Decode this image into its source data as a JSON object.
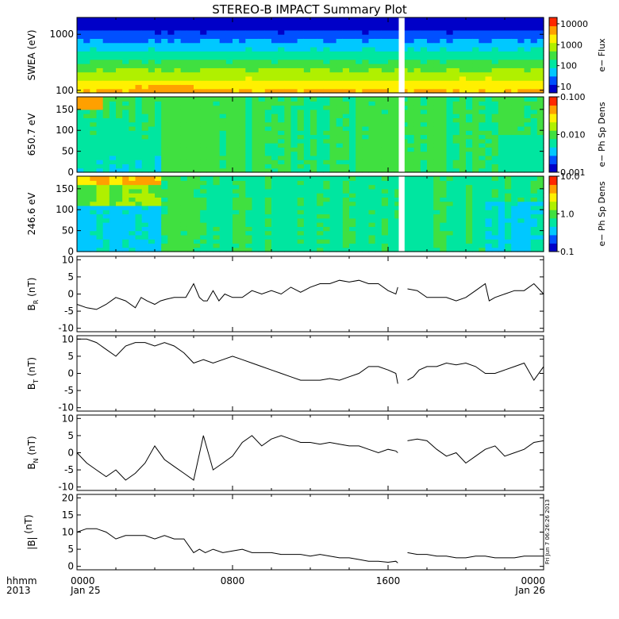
{
  "page": {
    "title": "STEREO-B IMPACT Summary Plot"
  },
  "x_axis": {
    "tick_labels": [
      "0000",
      "0800",
      "1600",
      "0000"
    ],
    "date_labels": [
      "Jan 25",
      "",
      "",
      "Jan 26"
    ],
    "row_labels": [
      "hhmm",
      "2013"
    ],
    "gap_hours": [
      16.55,
      16.85
    ]
  },
  "chart_data": [
    {
      "name": "swea",
      "type": "heatmap",
      "ylabel": "SWEA (eV)",
      "yscale": "log",
      "ylim": [
        90,
        2000
      ],
      "yticks": [
        {
          "v": 100,
          "label": "100"
        },
        {
          "v": 1000,
          "label": "1000"
        }
      ],
      "colorbar": {
        "label": "e− Flux",
        "scale": "log",
        "range": [
          5,
          20000
        ],
        "ticks": [
          {
            "v": 10,
            "label": "10"
          },
          {
            "v": 100,
            "label": "100"
          },
          {
            "v": 1000,
            "label": "1000"
          },
          {
            "v": 10000,
            "label": "10000"
          }
        ]
      },
      "palette": [
        "#0000c8",
        "#0050ff",
        "#00c8ff",
        "#00e6a0",
        "#40e040",
        "#b0f000",
        "#fff000",
        "#ffa000",
        "#ff2800"
      ]
    },
    {
      "name": "pad_650",
      "type": "heatmap",
      "ylabel": "650.7 eV",
      "ylim": [
        0,
        180
      ],
      "yticks": [
        {
          "v": 0,
          "label": "0"
        },
        {
          "v": 50,
          "label": "50"
        },
        {
          "v": 100,
          "label": "100"
        },
        {
          "v": 150,
          "label": "150"
        }
      ],
      "colorbar": {
        "label": "e− Ph Sp Dens",
        "scale": "log",
        "range": [
          0.001,
          0.1
        ],
        "ticks": [
          {
            "v": 0.001,
            "label": "0.001"
          },
          {
            "v": 0.01,
            "label": "0.010"
          },
          {
            "v": 0.1,
            "label": "0.100"
          }
        ]
      },
      "palette": [
        "#0000c8",
        "#0050ff",
        "#00c8ff",
        "#00e6a0",
        "#40e040",
        "#b0f000",
        "#fff000",
        "#ffa000",
        "#ff2800"
      ]
    },
    {
      "name": "pad_246",
      "type": "heatmap",
      "ylabel": "246.6 eV",
      "ylim": [
        0,
        180
      ],
      "yticks": [
        {
          "v": 0,
          "label": "0"
        },
        {
          "v": 50,
          "label": "50"
        },
        {
          "v": 100,
          "label": "100"
        },
        {
          "v": 150,
          "label": "150"
        }
      ],
      "colorbar": {
        "label": "e− Ph Sp Dens",
        "scale": "log",
        "range": [
          0.1,
          10
        ],
        "ticks": [
          {
            "v": 0.1,
            "label": "0.1"
          },
          {
            "v": 1,
            "label": "1.0"
          },
          {
            "v": 10,
            "label": "10.0"
          }
        ]
      },
      "palette": [
        "#0000c8",
        "#0050ff",
        "#00c8ff",
        "#00e6a0",
        "#40e040",
        "#b0f000",
        "#fff000",
        "#ffa000",
        "#ff2800"
      ]
    },
    {
      "name": "br",
      "type": "line",
      "ylabel_main": "B",
      "ylabel_sub": "R",
      "ylabel_unit": " (nT)",
      "ylim": [
        -11,
        11
      ],
      "yticks": [
        -10,
        -5,
        0,
        5,
        10
      ],
      "x": [
        0,
        0.5,
        1,
        1.5,
        2,
        2.5,
        3,
        3.3,
        3.6,
        4,
        4.3,
        4.6,
        5,
        5.3,
        5.6,
        6,
        6.3,
        6.5,
        6.7,
        7,
        7.3,
        7.6,
        8,
        8.5,
        9,
        9.5,
        10,
        10.5,
        11,
        11.5,
        12,
        12.5,
        13,
        13.5,
        14,
        14.5,
        15,
        15.5,
        16,
        16.4,
        16.5
      ],
      "y": [
        -3,
        -4,
        -4.5,
        -3,
        -1,
        -2,
        -4,
        -1,
        -2,
        -3,
        -2,
        -1.5,
        -1,
        -1,
        -1,
        3,
        -1,
        -2,
        -2,
        1,
        -2,
        0,
        -1,
        -1,
        1,
        0,
        1,
        0,
        2,
        0.5,
        2,
        3,
        3,
        4,
        3.5,
        4,
        3,
        3,
        1,
        0,
        2
      ],
      "x2": [
        17,
        17.5,
        18,
        18.5,
        19,
        19.5,
        20,
        20.5,
        21,
        21.2,
        21.5,
        22,
        22.5,
        23,
        23.5,
        24
      ],
      "y2": [
        1.5,
        1,
        -1,
        -1,
        -1,
        -2,
        -1,
        1,
        3,
        -2,
        -1,
        0,
        1,
        1,
        3,
        0
      ]
    },
    {
      "name": "bt",
      "type": "line",
      "ylabel_main": "B",
      "ylabel_sub": "T",
      "ylabel_unit": " (nT)",
      "ylim": [
        -11,
        11
      ],
      "yticks": [
        -10,
        -5,
        0,
        5,
        10
      ],
      "x": [
        0,
        0.5,
        1,
        1.5,
        2,
        2.5,
        3,
        3.5,
        4,
        4.5,
        5,
        5.5,
        6,
        6.5,
        7,
        7.5,
        8,
        8.5,
        9,
        9.5,
        10,
        10.5,
        11,
        11.5,
        12,
        12.5,
        13,
        13.5,
        14,
        14.5,
        15,
        15.5,
        16,
        16.4,
        16.5
      ],
      "y": [
        10,
        10,
        9,
        7,
        5,
        8,
        9,
        9,
        8,
        9,
        8,
        6,
        3,
        4,
        3,
        4,
        5,
        4,
        3,
        2,
        1,
        0,
        -1,
        -2,
        -2,
        -2,
        -1.5,
        -2,
        -1,
        0,
        2,
        2,
        1,
        0,
        -3
      ],
      "x2": [
        17,
        17.3,
        17.6,
        18,
        18.5,
        19,
        19.5,
        20,
        20.5,
        21,
        21.5,
        22,
        22.5,
        23,
        23.5,
        24
      ],
      "y2": [
        -2,
        -1,
        1,
        2,
        2,
        3,
        2.5,
        3,
        2,
        0,
        0,
        1,
        2,
        3,
        -2,
        2
      ]
    },
    {
      "name": "bn",
      "type": "line",
      "ylabel_main": "B",
      "ylabel_sub": "N",
      "ylabel_unit": " (nT)",
      "ylim": [
        -11,
        11
      ],
      "yticks": [
        -10,
        -5,
        0,
        5,
        10
      ],
      "x": [
        0,
        0.5,
        1,
        1.5,
        2,
        2.5,
        3,
        3.5,
        4,
        4.5,
        5,
        5.5,
        6,
        6.5,
        7,
        7.5,
        8,
        8.5,
        9,
        9.5,
        10,
        10.5,
        11,
        11.5,
        12,
        12.5,
        13,
        13.5,
        14,
        14.5,
        15,
        15.5,
        16,
        16.4,
        16.5
      ],
      "y": [
        0,
        -3,
        -5,
        -7,
        -5,
        -8,
        -6,
        -3,
        2,
        -2,
        -4,
        -6,
        -8,
        5,
        -5,
        -3,
        -1,
        3,
        5,
        2,
        4,
        5,
        4,
        3,
        3,
        2.5,
        3,
        2.5,
        2,
        2,
        1,
        0,
        1,
        0.5,
        0
      ],
      "x2": [
        17,
        17.5,
        18,
        18.5,
        19,
        19.5,
        20,
        20.5,
        21,
        21.5,
        22,
        22.5,
        23,
        23.5,
        24
      ],
      "y2": [
        3.5,
        4,
        3.5,
        1,
        -1,
        0,
        -3,
        -1,
        1,
        2,
        -1,
        0,
        1,
        3,
        3.5
      ]
    },
    {
      "name": "bmag",
      "type": "line",
      "ylabel_main": "|B|",
      "ylabel_sub": "",
      "ylabel_unit": " (nT)",
      "ylim": [
        -1,
        21
      ],
      "yticks": [
        0,
        5,
        10,
        15,
        20
      ],
      "x": [
        0,
        0.5,
        1,
        1.5,
        2,
        2.5,
        3,
        3.5,
        4,
        4.5,
        5,
        5.5,
        6,
        6.3,
        6.6,
        7,
        7.5,
        8,
        8.5,
        9,
        9.5,
        10,
        10.5,
        11,
        11.5,
        12,
        12.5,
        13,
        13.5,
        14,
        14.5,
        15,
        15.5,
        16,
        16.4,
        16.5
      ],
      "y": [
        10,
        11,
        11,
        10,
        8,
        9,
        9,
        9,
        8,
        9,
        8,
        8,
        4,
        5,
        4,
        5,
        4,
        4.5,
        5,
        4,
        4,
        4,
        3.5,
        3.5,
        3.5,
        3,
        3.5,
        3,
        2.5,
        2.5,
        2,
        1.5,
        1.5,
        1.2,
        1.5,
        1
      ],
      "x2": [
        17,
        17.5,
        18,
        18.5,
        19,
        19.5,
        20,
        20.5,
        21,
        21.5,
        22,
        22.5,
        23,
        23.5,
        24
      ],
      "y2": [
        4,
        3.5,
        3.5,
        3,
        3,
        2.5,
        2.5,
        3,
        3,
        2.5,
        2.5,
        2.5,
        3,
        3,
        3
      ]
    }
  ],
  "stamp": "Fri Jun 7 06:26:26 2013"
}
